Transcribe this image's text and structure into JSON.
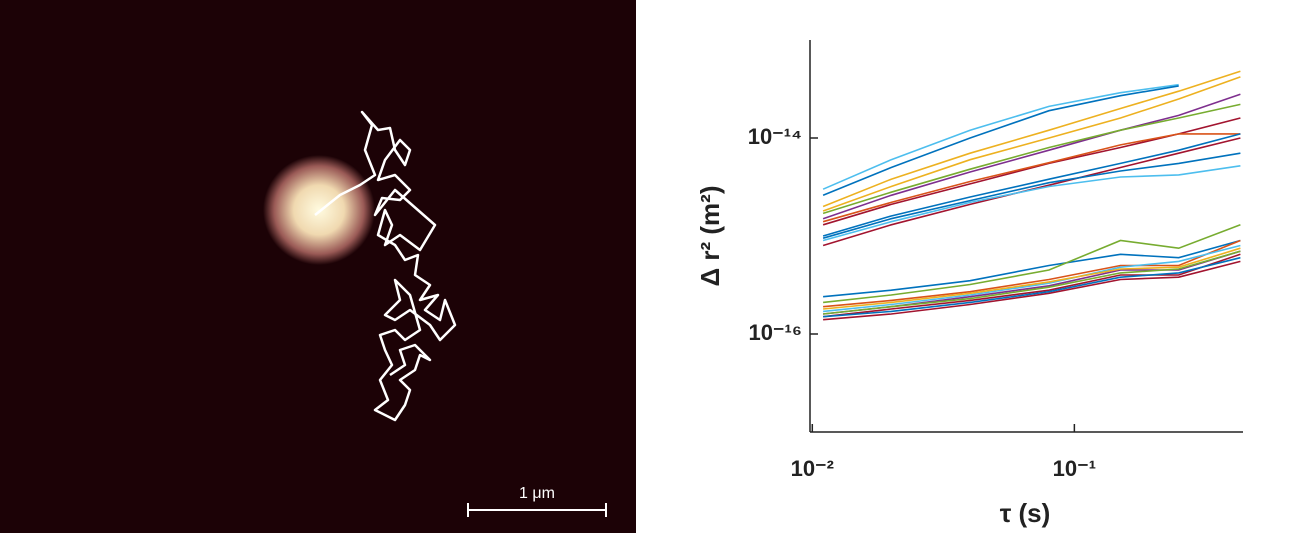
{
  "image": {
    "scale_bar_label": "1 μm"
  },
  "chart_data": {
    "type": "line",
    "xlabel": "τ (s)",
    "ylabel": "Δ r² (m²)",
    "xscale": "log",
    "yscale": "log",
    "xlim": [
      0.0098,
      0.44
    ],
    "ylim": [
      1e-17,
      1e-13
    ],
    "xticks": [
      {
        "value": 0.01,
        "label": "10⁻²"
      },
      {
        "value": 0.1,
        "label": "10⁻¹"
      }
    ],
    "yticks": [
      {
        "value": 1e-14,
        "label": "10⁻¹⁴"
      },
      {
        "value": 1e-16,
        "label": "10⁻¹⁶"
      }
    ],
    "x": [
      0.011,
      0.02,
      0.04,
      0.08,
      0.15,
      0.25,
      0.43
    ],
    "series": [
      {
        "color": "#4dbeee",
        "values": [
          3e-15,
          6e-15,
          1.2e-14,
          2.1e-14,
          2.9e-14,
          3.5e-14,
          null
        ]
      },
      {
        "color": "#0072bd",
        "values": [
          2.6e-15,
          5e-15,
          1e-14,
          1.9e-14,
          2.7e-14,
          3.4e-14,
          null
        ]
      },
      {
        "color": "#edb120",
        "values": [
          2e-15,
          3.8e-15,
          7e-15,
          1.2e-14,
          2e-14,
          3e-14,
          4.8e-14
        ]
      },
      {
        "color": "#edb120",
        "values": [
          1.8e-15,
          3.2e-15,
          6e-15,
          1e-14,
          1.6e-14,
          2.5e-14,
          4.2e-14
        ]
      },
      {
        "color": "#7e2f8e",
        "values": [
          1.5e-15,
          2.6e-15,
          4.5e-15,
          7.5e-15,
          1.2e-14,
          1.7e-14,
          2.8e-14
        ]
      },
      {
        "color": "#77ac30",
        "values": [
          1.7e-15,
          2.8e-15,
          4.8e-15,
          8e-15,
          1.2e-14,
          1.6e-14,
          2.2e-14
        ]
      },
      {
        "color": "#a2142f",
        "values": [
          1.3e-15,
          2.1e-15,
          3.4e-15,
          5.5e-15,
          8e-15,
          1.1e-14,
          1.6e-14
        ]
      },
      {
        "color": "#d95319",
        "values": [
          1.4e-15,
          2.2e-15,
          3.6e-15,
          5.6e-15,
          8.5e-15,
          1.1e-14,
          1.1e-14
        ]
      },
      {
        "color": "#0072bd",
        "values": [
          1e-15,
          1.6e-15,
          2.5e-15,
          3.8e-15,
          5.5e-15,
          7.5e-15,
          1.1e-14
        ]
      },
      {
        "color": "#a2142f",
        "values": [
          8e-16,
          1.3e-15,
          2.1e-15,
          3.3e-15,
          5e-15,
          7e-15,
          1e-14
        ]
      },
      {
        "color": "#4dbeee",
        "values": [
          9e-16,
          1.4e-15,
          2.2e-15,
          3.2e-15,
          4e-15,
          4.2e-15,
          5.2e-15
        ]
      },
      {
        "color": "#0072bd",
        "values": [
          9.5e-16,
          1.5e-15,
          2.3e-15,
          3.5e-15,
          4.6e-15,
          5.5e-15,
          7e-15
        ]
      },
      {
        "color": "#0072bd",
        "values": [
          2.4e-16,
          2.8e-16,
          3.5e-16,
          5e-16,
          6.5e-16,
          6e-16,
          9e-16
        ]
      },
      {
        "color": "#77ac30",
        "values": [
          2.1e-16,
          2.5e-16,
          3.2e-16,
          4.5e-16,
          9e-16,
          7.5e-16,
          1.3e-15
        ]
      },
      {
        "color": "#d95319",
        "values": [
          1.9e-16,
          2.2e-16,
          2.7e-16,
          3.6e-16,
          5e-16,
          5e-16,
          9e-16
        ]
      },
      {
        "color": "#7e2f8e",
        "values": [
          1.6e-16,
          1.9e-16,
          2.4e-16,
          3.1e-16,
          4.5e-16,
          4.5e-16,
          7e-16
        ]
      },
      {
        "color": "#a2142f",
        "values": [
          1.5e-16,
          1.8e-16,
          2.2e-16,
          2.8e-16,
          4e-16,
          4e-16,
          6.5e-16
        ]
      },
      {
        "color": "#4dbeee",
        "values": [
          1.7e-16,
          2e-16,
          2.5e-16,
          3.3e-16,
          4.8e-16,
          5.5e-16,
          8e-16
        ]
      },
      {
        "color": "#edb120",
        "values": [
          1.8e-16,
          2.1e-16,
          2.6e-16,
          3.4e-16,
          4.6e-16,
          4.8e-16,
          7.5e-16
        ]
      },
      {
        "color": "#a2142f",
        "values": [
          1.4e-16,
          1.6e-16,
          2e-16,
          2.6e-16,
          3.6e-16,
          3.8e-16,
          5.5e-16
        ]
      },
      {
        "color": "#0072bd",
        "values": [
          1.5e-16,
          1.7e-16,
          2.1e-16,
          2.7e-16,
          3.8e-16,
          4.2e-16,
          6e-16
        ]
      },
      {
        "color": "#77ac30",
        "values": [
          1.6e-16,
          1.9e-16,
          2.3e-16,
          3e-16,
          4.2e-16,
          4.6e-16,
          7e-16
        ]
      }
    ]
  }
}
